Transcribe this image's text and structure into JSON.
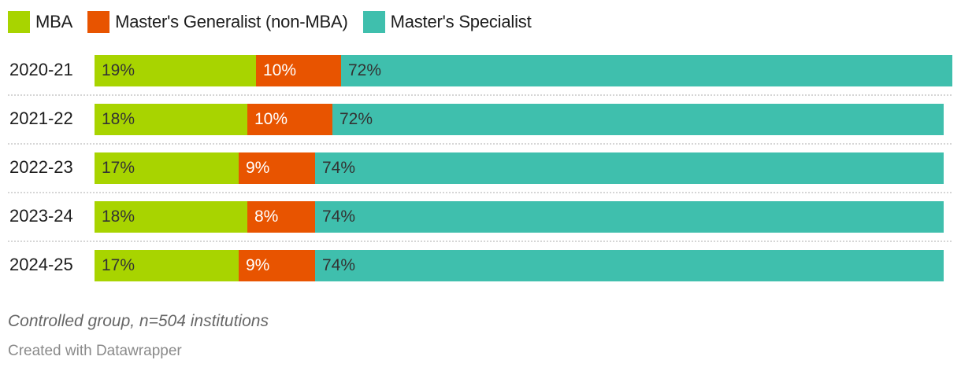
{
  "chart_data": {
    "type": "bar",
    "orientation": "horizontal",
    "stacked": true,
    "title": "",
    "xlabel": "",
    "ylabel": "",
    "categories": [
      "2020-21",
      "2021-22",
      "2022-23",
      "2023-24",
      "2024-25"
    ],
    "series": [
      {
        "name": "MBA",
        "color": "#a8d400",
        "values": [
          19,
          18,
          17,
          18,
          17
        ]
      },
      {
        "name": "Master's Generalist (non-MBA)",
        "color": "#e85400",
        "values": [
          10,
          10,
          9,
          8,
          9
        ]
      },
      {
        "name": "Master's Specialist",
        "color": "#3fbfad",
        "values": [
          72,
          72,
          74,
          74,
          74
        ]
      }
    ],
    "value_suffix": "%",
    "legend_position": "top",
    "grid": false,
    "notes": "Controlled group, n=504 institutions",
    "credit": "Created with Datawrapper"
  },
  "legend": [
    {
      "label": "MBA",
      "color": "#a8d400"
    },
    {
      "label": "Master's Generalist (non-MBA)",
      "color": "#e85400"
    },
    {
      "label": "Master's Specialist",
      "color": "#3fbfad"
    }
  ],
  "label_colors": {
    "dark": "#333333",
    "light": "#ffffff"
  },
  "footer": {
    "notes": "Controlled group, n=504 institutions",
    "credit": "Created with Datawrapper"
  }
}
